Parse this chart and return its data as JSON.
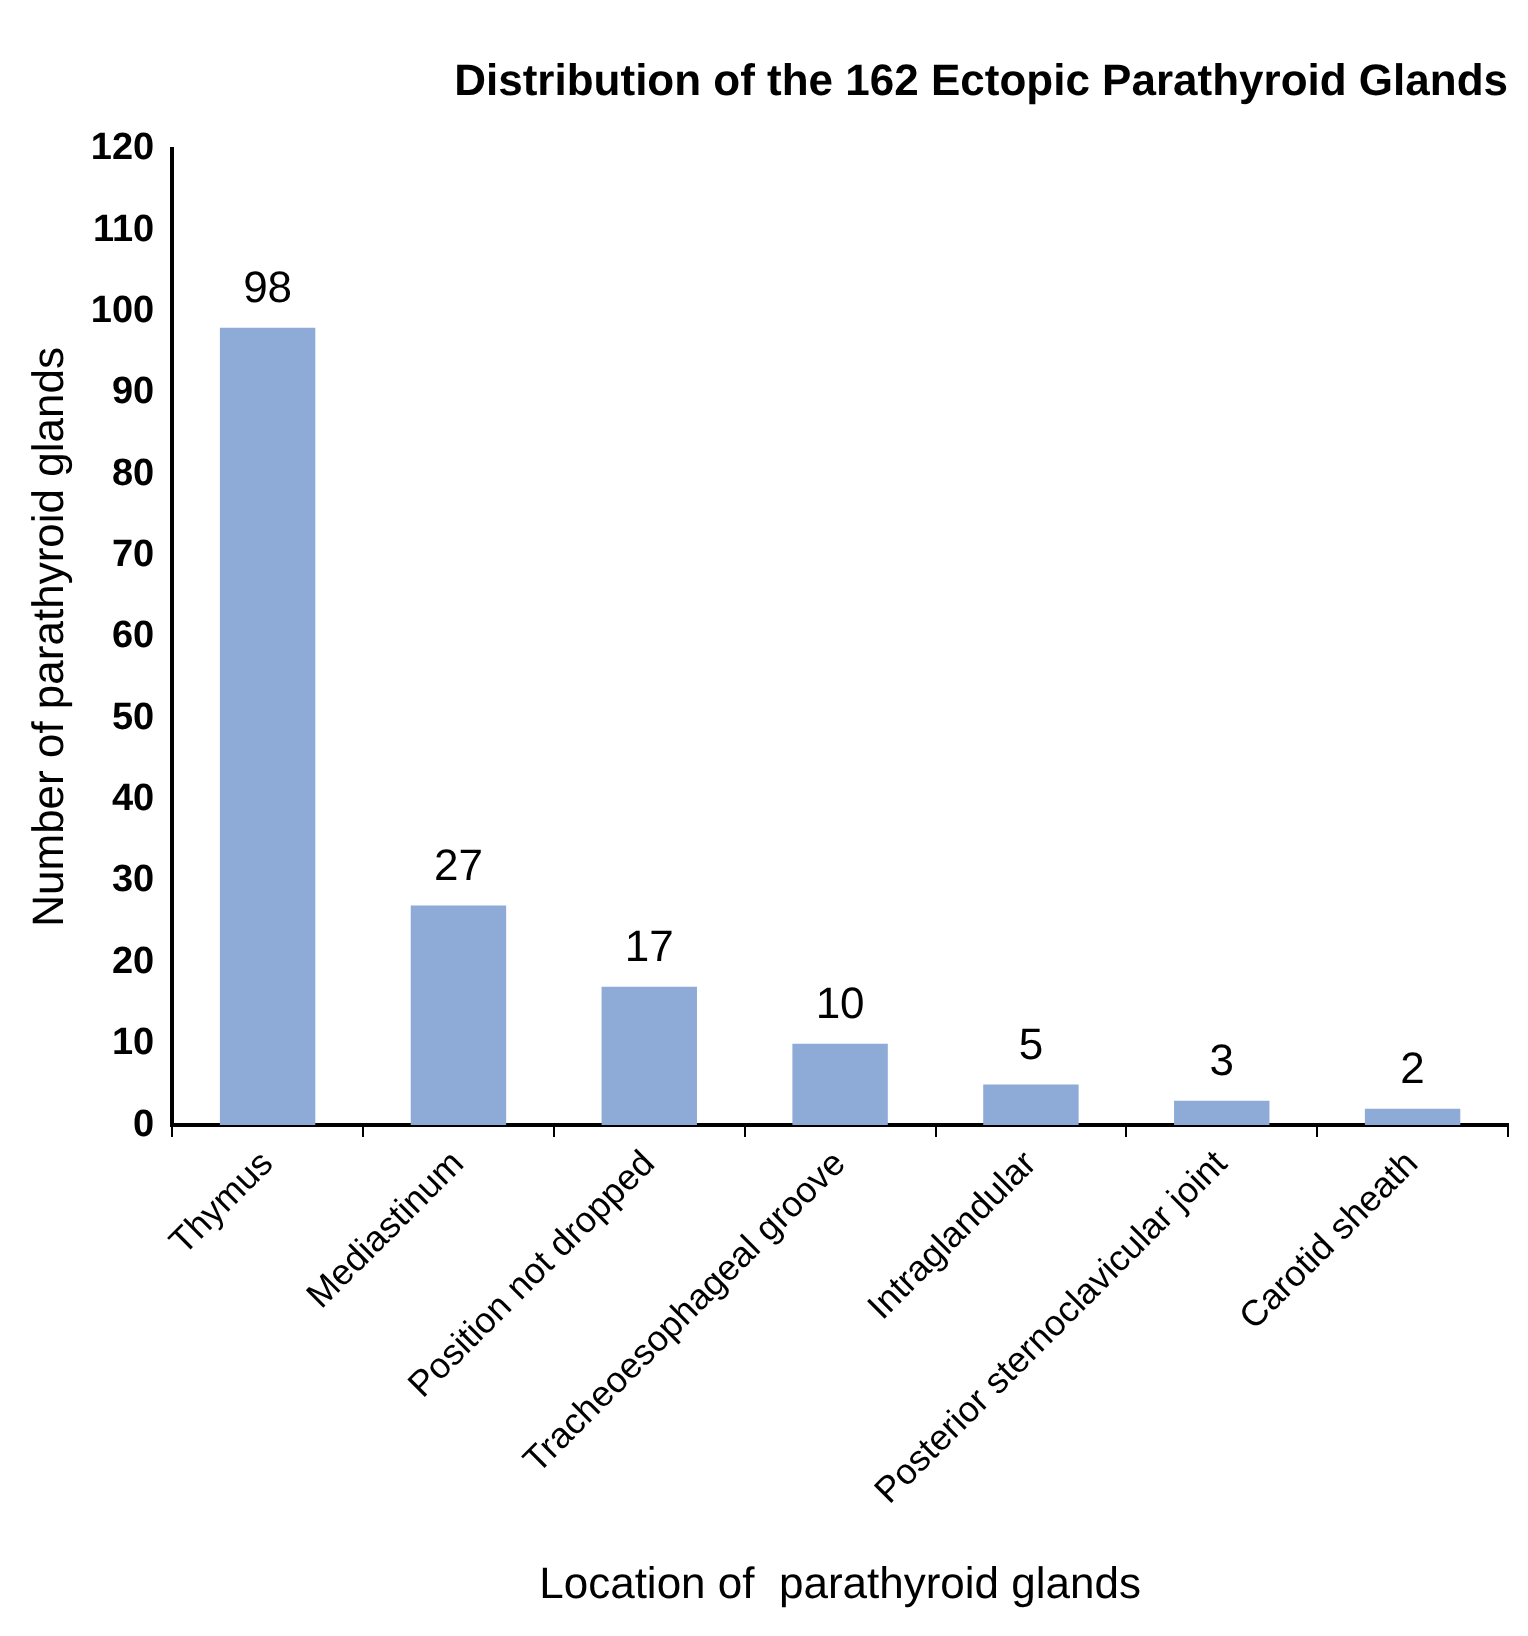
{
  "chart_data": {
    "type": "bar",
    "title": "Distribution of the 162 Ectopic Parathyroid Glands",
    "xlabel": "Location of  parathyroid glands",
    "ylabel": "Number of parathyroid glands",
    "categories": [
      "Thymus",
      "Mediastinum",
      "Position not dropped",
      "Tracheoesophageal groove",
      "Intraglandular",
      "Posterior sternoclavicular joint",
      "Carotid sheath"
    ],
    "values": [
      98,
      27,
      17,
      10,
      5,
      3,
      2
    ],
    "color": "#8eaad6",
    "ylim": [
      0,
      120
    ],
    "yticks": [
      0,
      10,
      20,
      30,
      40,
      50,
      60,
      70,
      80,
      90,
      100,
      110,
      120
    ],
    "grid": false,
    "legend": false,
    "data_labels": true
  }
}
